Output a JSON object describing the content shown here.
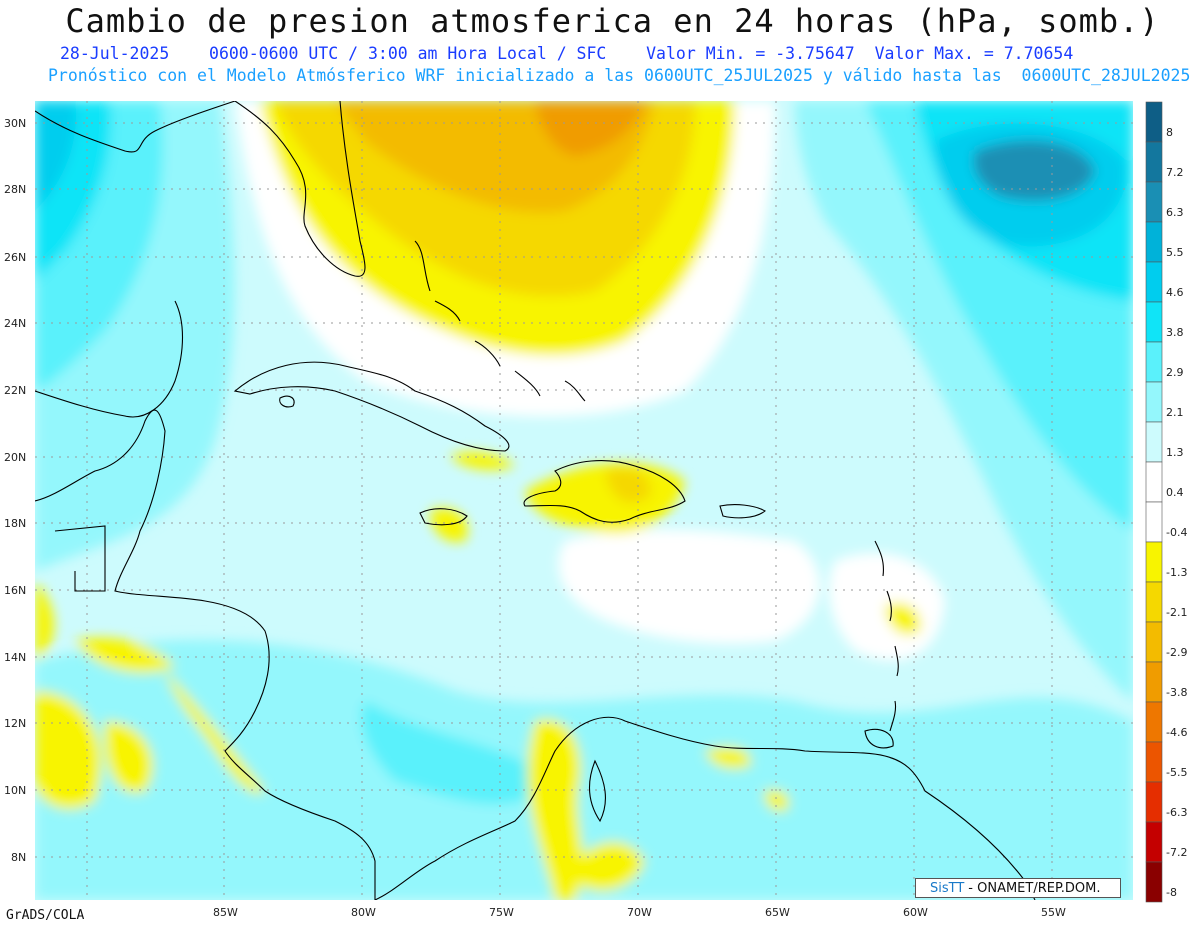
{
  "title": "Cambio de presion atmosferica en 24 horas (hPa, somb.)",
  "subtitle1": "28-Jul-2025    0600-0600 UTC / 3:00 am Hora Local / SFC    Valor Min. = -3.75647  Valor Max. = 7.70654",
  "subtitle2": "Pronóstico con el Modelo Atmósferico WRF inicializado a las 0600UTC_25JUL2025 y válido hasta las  0600UTC_28JUL2025",
  "lat_labels": [
    "30N",
    "28N",
    "26N",
    "24N",
    "22N",
    "20N",
    "18N",
    "16N",
    "14N",
    "12N",
    "10N",
    "8N"
  ],
  "lon_labels": [
    "85W",
    "80W",
    "75W",
    "70W",
    "65W",
    "60W",
    "55W"
  ],
  "colorbar": {
    "labels": [
      "8",
      "7.2",
      "6.3",
      "5.5",
      "4.6",
      "3.8",
      "2.9",
      "2.1",
      "1.3",
      "0.4",
      "-0.4",
      "-1.3",
      "-2.1",
      "-2.9",
      "-3.8",
      "-4.6",
      "-5.5",
      "-6.3",
      "-7.2",
      "-8"
    ],
    "colors": [
      "#0e5e86",
      "#13779e",
      "#1a8fb4",
      "#00b2d9",
      "#00cdee",
      "#10e4f7",
      "#5af1fb",
      "#94f7fc",
      "#cdfbfd",
      "#ffffff",
      "#ffffff",
      "#f8f400",
      "#f5d800",
      "#f3bb00",
      "#f09c00",
      "#ee7700",
      "#ec5500",
      "#e52e00",
      "#c40000",
      "#8a0000"
    ]
  },
  "footer_left": "GrADS/COLA",
  "credit": {
    "brand": "SisTT",
    "text": "- ONAMET/REP.DOM."
  }
}
